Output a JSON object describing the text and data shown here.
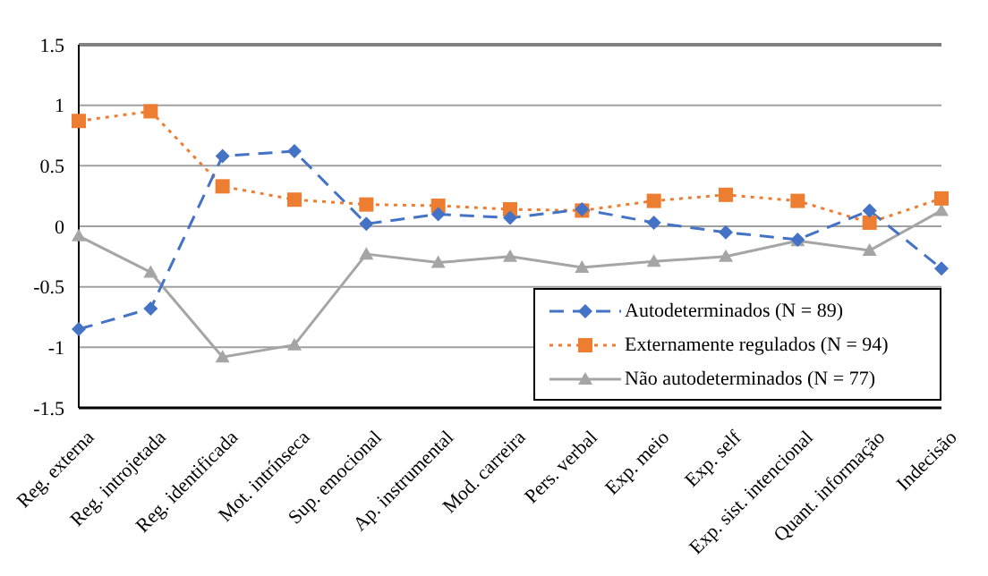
{
  "chart_data": {
    "type": "line",
    "categories": [
      "Reg. externa",
      "Reg. introjetada",
      "Reg. identificada",
      "Mot. intrínseca",
      "Sup. emocional",
      "Ap. instrumental",
      "Mod. carreira",
      "Pers. verbal",
      "Exp. meio",
      "Exp. self",
      "Exp. sist. intencional",
      "Quant. informação",
      "Indecisão"
    ],
    "series": [
      {
        "name": "Autodeterminados (N = 89)",
        "color": "#4472c4",
        "marker": "diamond",
        "line_style": "dashed",
        "values": [
          -0.85,
          -0.68,
          0.58,
          0.62,
          0.02,
          0.1,
          0.07,
          0.14,
          0.03,
          -0.05,
          -0.11,
          0.13,
          -0.35
        ]
      },
      {
        "name": "Externamente regulados (N = 94)",
        "color": "#ed7d31",
        "marker": "square",
        "line_style": "dotted",
        "values": [
          0.87,
          0.95,
          0.33,
          0.22,
          0.18,
          0.17,
          0.14,
          0.13,
          0.21,
          0.26,
          0.21,
          0.03,
          0.23
        ]
      },
      {
        "name": "Não autodeterminados  (N = 77)",
        "color": "#a5a5a5",
        "marker": "triangle",
        "line_style": "solid",
        "values": [
          -0.08,
          -0.38,
          -1.08,
          -0.98,
          -0.23,
          -0.3,
          -0.25,
          -0.34,
          -0.29,
          -0.25,
          -0.12,
          -0.2,
          0.13
        ]
      }
    ],
    "ylim": [
      -1.5,
      1.5
    ],
    "yticks": [
      -1.5,
      -1,
      -0.5,
      0,
      0.5,
      1,
      1.5
    ],
    "grid": "y",
    "legend": "bottom right"
  }
}
